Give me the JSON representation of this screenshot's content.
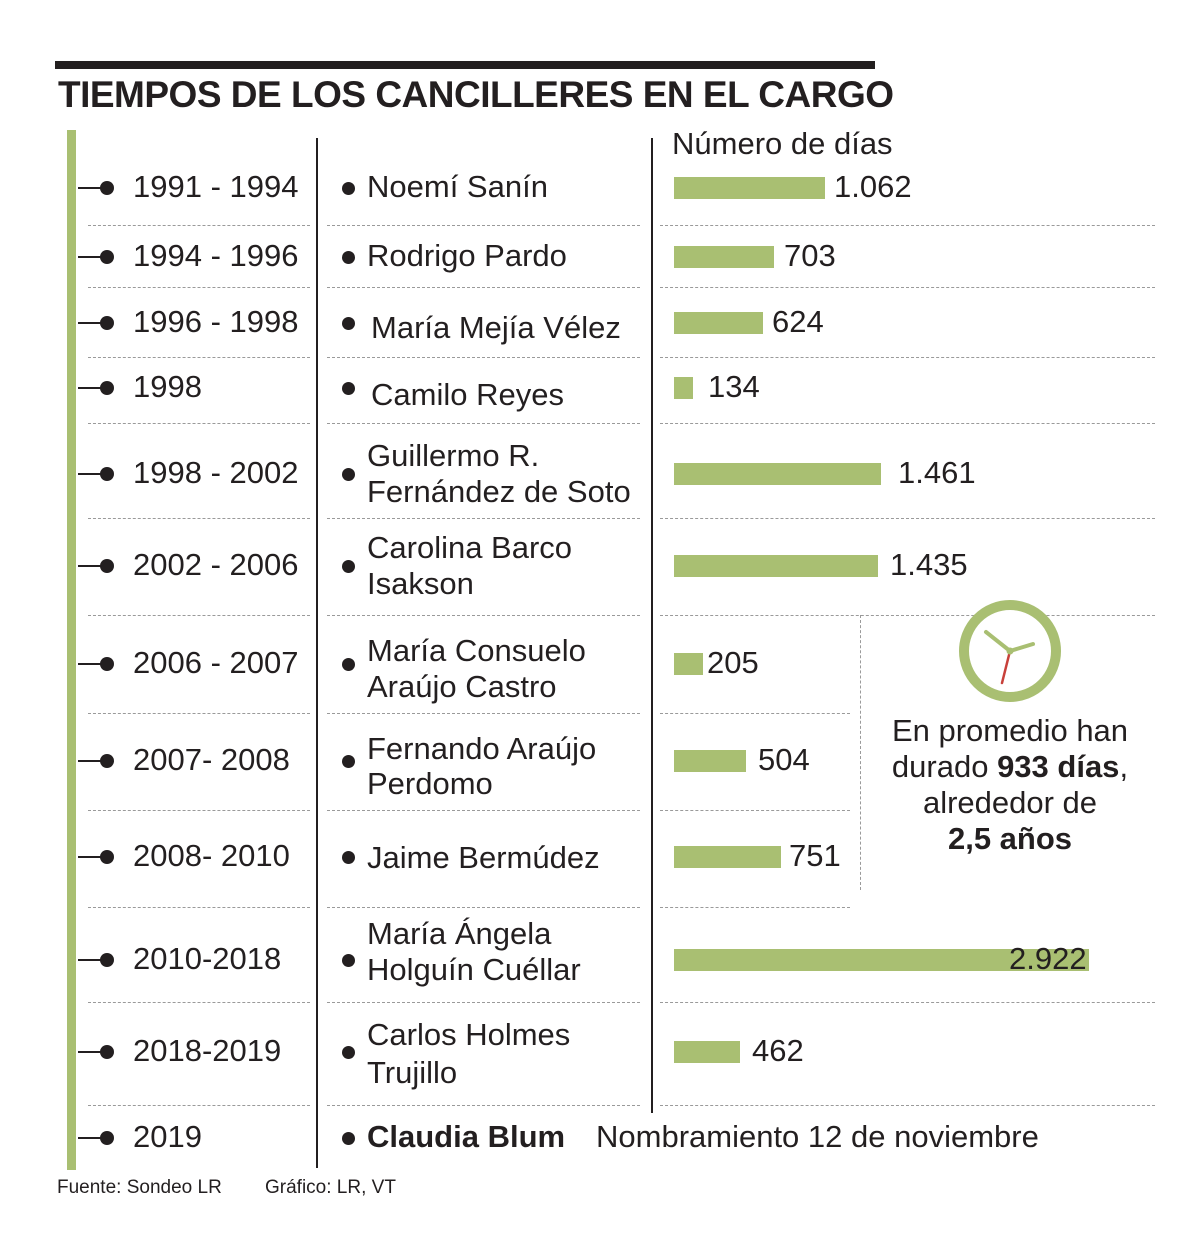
{
  "title": "TIEMPOS DE LOS CANCILLERES EN EL CARGO",
  "value_header": "Número de días",
  "accent_color": "#a9bf72",
  "rows": [
    {
      "years": "1991 - 1994",
      "name": [
        "Noemí Sanín"
      ],
      "days_label": "1.062"
    },
    {
      "years": "1994 - 1996",
      "name": [
        "Rodrigo Pardo"
      ],
      "days_label": "703"
    },
    {
      "years": "1996 - 1998",
      "name": [
        "María Mejía Vélez"
      ],
      "days_label": "624"
    },
    {
      "years": "1998",
      "name": [
        "Camilo Reyes"
      ],
      "days_label": "134"
    },
    {
      "years": "1998 - 2002",
      "name": [
        "Guillermo R.",
        "Fernández de Soto"
      ],
      "days_label": "1.461"
    },
    {
      "years": "2002 - 2006",
      "name": [
        "Carolina Barco",
        "Isakson"
      ],
      "days_label": "1.435"
    },
    {
      "years": "2006 - 2007",
      "name": [
        "María Consuelo",
        "Araújo Castro"
      ],
      "days_label": "205"
    },
    {
      "years": "2007- 2008",
      "name": [
        "Fernando Araújo",
        "Perdomo"
      ],
      "days_label": "504"
    },
    {
      "years": "2008- 2010",
      "name": [
        "Jaime Bermúdez"
      ],
      "days_label": "751"
    },
    {
      "years": "2010-2018",
      "name": [
        "María Ángela",
        "Holguín Cuéllar"
      ],
      "days_label": "2.922"
    },
    {
      "years": "2018-2019",
      "name": [
        "Carlos Holmes",
        "Trujillo"
      ],
      "days_label": "462"
    },
    {
      "years": "2019",
      "name": [
        "Claudia Blum"
      ],
      "days_label": ""
    }
  ],
  "current": {
    "appointment": "Nombramiento 12 de noviembre"
  },
  "average": {
    "line1": "En promedio han",
    "line2_pre": "durado ",
    "line2_bold": "933 días",
    "line2_post": ",",
    "line3": "alrededor de",
    "line4_bold": "2,5 años"
  },
  "footer": {
    "source": "Fuente: Sondeo LR",
    "credit": "Gráfico: LR, VT"
  },
  "chart_data": {
    "type": "bar",
    "orientation": "horizontal",
    "title": "TIEMPOS DE LOS CANCILLERES EN EL CARGO",
    "ylabel": "Número de días",
    "categories": [
      "Noemí Sanín",
      "Rodrigo Pardo",
      "María Mejía Vélez",
      "Camilo Reyes",
      "Guillermo R. Fernández de Soto",
      "Carolina Barco Isakson",
      "María Consuelo Araújo Castro",
      "Fernando Araújo Perdomo",
      "Jaime Bermúdez",
      "María Ángela Holguín Cuéllar",
      "Carlos Holmes Trujillo"
    ],
    "periods": [
      "1991 - 1994",
      "1994 - 1996",
      "1996 - 1998",
      "1998",
      "1998 - 2002",
      "2002 - 2006",
      "2006 - 2007",
      "2007- 2008",
      "2008- 2010",
      "2010-2018",
      "2018-2019"
    ],
    "values": [
      1062,
      703,
      624,
      134,
      1461,
      1435,
      205,
      504,
      751,
      2922,
      462
    ],
    "grid": false,
    "legend": "none",
    "average_days": 933,
    "average_years": 2.5
  }
}
